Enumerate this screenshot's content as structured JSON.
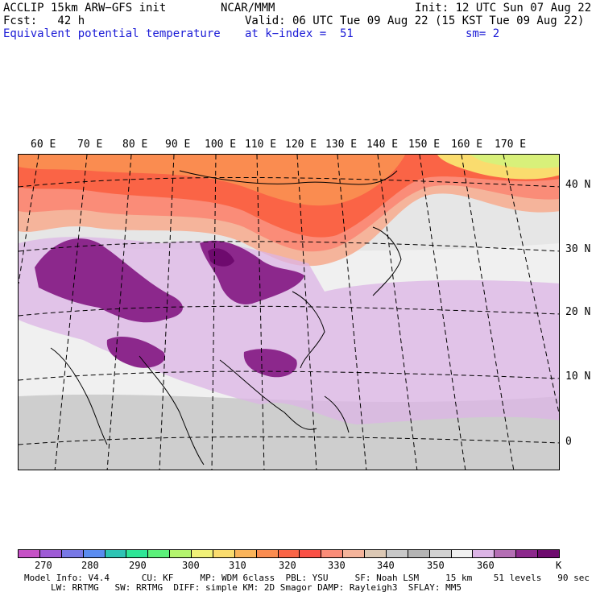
{
  "header": {
    "left_line1": "ACCLIP 15km ARW−GFS init",
    "left_line2": "Fcst:   42 h",
    "left_line3": "Equivalent potential temperature",
    "center_line1": "NCAR/MMM",
    "center_line2": "Valid: 06 UTC Tue 09 Aug 22 (15 KST Tue 09 Aug 22)",
    "center_line3": "at k−index =  51",
    "right_line1": "Init: 12 UTC Sun 07 Aug 22",
    "right_line3": "sm= 2"
  },
  "map": {
    "longitude_labels": [
      "60 E",
      "70 E",
      "80 E",
      "90 E",
      "100 E",
      "110 E",
      "120 E",
      "130 E",
      "140 E",
      "150 E",
      "160 E",
      "170 E"
    ],
    "latitude_labels": [
      "40 N",
      "30 N",
      "20 N",
      "10 N",
      "0"
    ]
  },
  "colorbar": {
    "colors": [
      "#c651c6",
      "#9e5ad6",
      "#7878e6",
      "#5a8cf0",
      "#2ec4b4",
      "#2ee696",
      "#5cf07a",
      "#b4f56e",
      "#f0f078",
      "#fadc6e",
      "#fab45a",
      "#fa8c50",
      "#fa6446",
      "#fa5046",
      "#fa8c78",
      "#f5b49b",
      "#dcc8b4",
      "#c8c8c8",
      "#b4b4b4",
      "#d2d2d2",
      "#f0f0f0",
      "#dcb4e6",
      "#b46eb4",
      "#8c288c",
      "#6e0a6e"
    ],
    "tick_labels": [
      "270",
      "280",
      "290",
      "300",
      "310",
      "320",
      "330",
      "340",
      "350",
      "360"
    ],
    "unit": "K"
  },
  "model_info": {
    "line1": "Model Info: V4.4      CU: KF     MP: WDM 6class  PBL: YSU     SF: Noah LSM     15 km    51 levels   90 sec",
    "line2": "LW: RRTMG   SW: RRTMG  DIFF: simple KM: 2D Smagor DAMP: Rayleigh3  SFLAY: MM5"
  }
}
